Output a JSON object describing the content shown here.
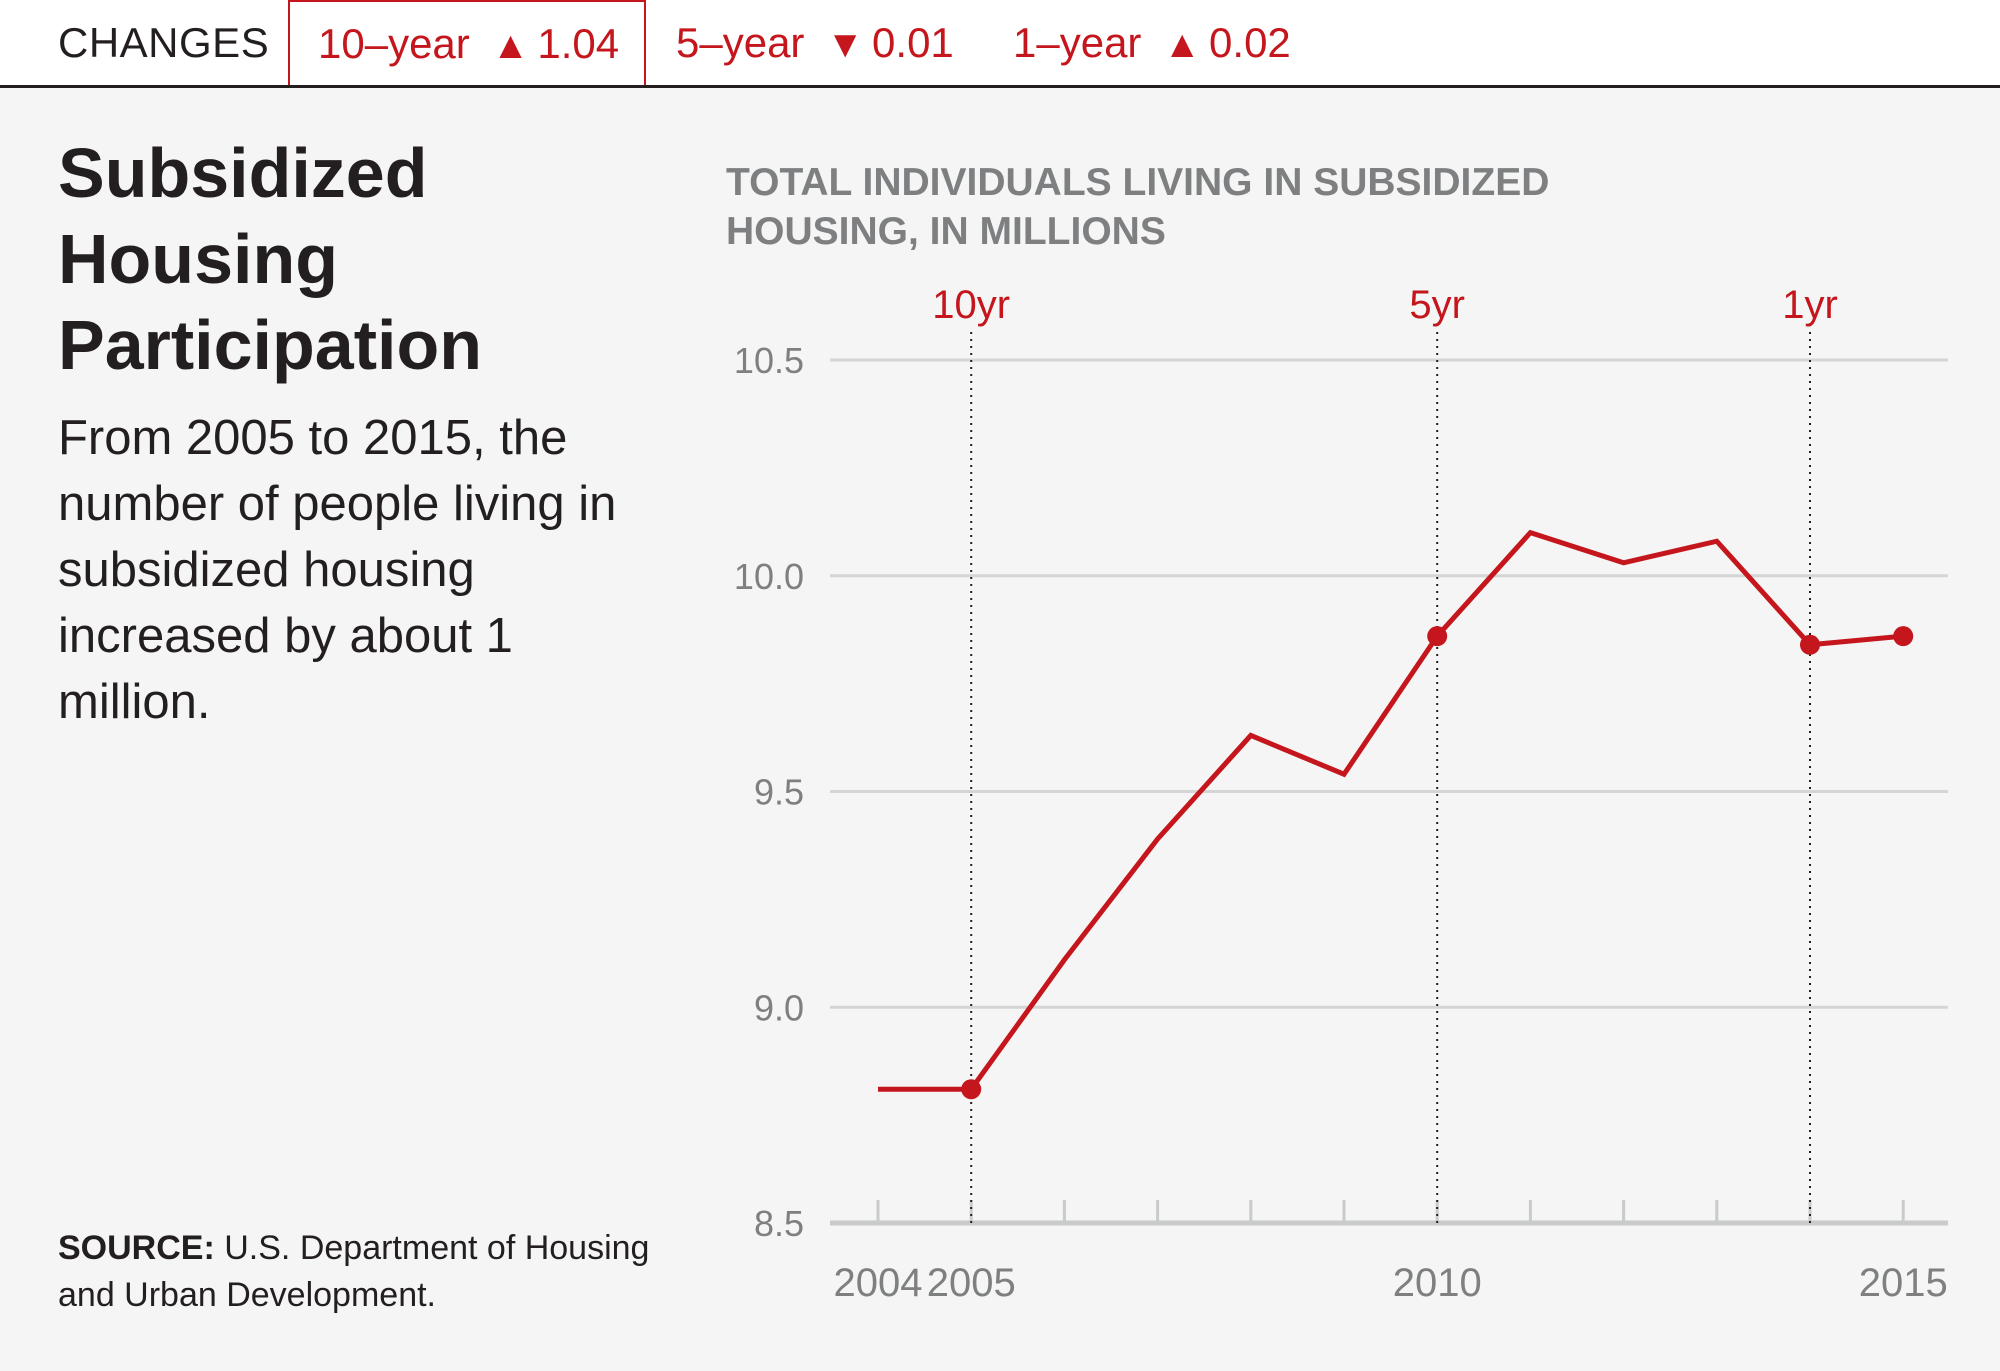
{
  "topbar": {
    "label": "CHANGES",
    "tabs": [
      {
        "period": "10–year",
        "arrow": "▲",
        "change": "1.04",
        "active": true
      },
      {
        "period": "5–year",
        "arrow": "▼",
        "change": "0.01",
        "active": false
      },
      {
        "period": "1–year",
        "arrow": "▲",
        "change": "0.02",
        "active": false
      }
    ]
  },
  "headline": "Subsidized Housing Participation",
  "summary": "From 2005 to 2015, the number of people living in subsidized housing increased by about 1 million.",
  "source": {
    "label": "SOURCE:",
    "text": "U.S. Department of Housing and Urban Development."
  },
  "colors": {
    "accent": "#c4161c",
    "text": "#231f20",
    "muted": "#7d7f81",
    "grid": "#d4d5d5",
    "background": "#f4f5f4"
  },
  "chart_data": {
    "type": "line",
    "title": "TOTAL INDIVIDUALS LIVING IN SUBSIDIZED HOUSING, IN MILLIONS",
    "xlabel": "",
    "ylabel": "",
    "x": [
      2004,
      2005,
      2006,
      2007,
      2008,
      2009,
      2010,
      2011,
      2012,
      2013,
      2014,
      2015
    ],
    "values": [
      8.81,
      8.81,
      9.11,
      9.39,
      9.63,
      9.54,
      9.86,
      10.1,
      10.03,
      10.08,
      9.84,
      9.86
    ],
    "ylim": [
      8.5,
      10.5
    ],
    "yticks": [
      "8.5",
      "9.0",
      "9.5",
      "10.0",
      "10.5"
    ],
    "xtick_labels": [
      {
        "year": 2004,
        "label": "2004"
      },
      {
        "year": 2005,
        "label": "2005"
      },
      {
        "year": 2010,
        "label": "2010"
      },
      {
        "year": 2015,
        "label": "2015"
      }
    ],
    "markers": [
      {
        "year": 2005,
        "label": "10yr"
      },
      {
        "year": 2010,
        "label": "5yr"
      },
      {
        "year": 2014,
        "label": "1yr"
      }
    ],
    "highlighted_points": [
      2005,
      2010,
      2014,
      2015
    ],
    "grid": true
  }
}
